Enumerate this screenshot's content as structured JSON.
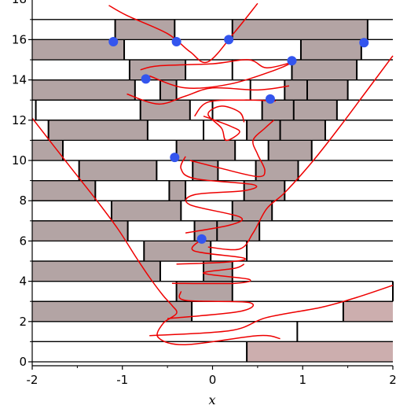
{
  "chart_data": {
    "type": "scatter",
    "title": "",
    "xlabel": "x",
    "ylabel": "",
    "xlim": [
      -2,
      2
    ],
    "ylim": [
      -0.2,
      18
    ],
    "xticks": [
      -2,
      -1,
      0,
      1,
      2
    ],
    "xtick_labels": [
      "-2",
      "-1",
      "0",
      "1",
      "2"
    ],
    "yticks": [
      0,
      2,
      4,
      6,
      8,
      10,
      12,
      14,
      16,
      18
    ],
    "ytick_labels": [
      "0",
      "2",
      "4",
      "6",
      "8",
      "10",
      "12",
      "14",
      "16",
      "18"
    ],
    "grid": false,
    "colors": {
      "bar_fill": "#b3a4a4",
      "bar_fill_light": "#ccaeae",
      "curve": "#ee0000",
      "points": "#3355ee",
      "lines": "#000000"
    },
    "strips": [
      {
        "y": 0,
        "dividers": [
          0.38
        ],
        "shaded": [
          [
            0.38,
            2
          ]
        ]
      },
      {
        "y": 1,
        "dividers": [
          0.94
        ],
        "shaded": []
      },
      {
        "y": 2,
        "dividers": [
          -0.23,
          1.45
        ],
        "shaded": [
          [
            -2,
            -0.23
          ],
          [
            1.45,
            2
          ]
        ]
      },
      {
        "y": 3,
        "dividers": [
          -0.4,
          0.22,
          2
        ],
        "shaded": [
          [
            -0.4,
            0.22
          ]
        ]
      },
      {
        "y": 4,
        "dividers": [
          -0.58,
          -0.1,
          0.22
        ],
        "shaded": [
          [
            -2,
            -0.58
          ],
          [
            -0.1,
            0.22
          ]
        ]
      },
      {
        "y": 5,
        "dividers": [
          -0.76,
          -0.02,
          0.38
        ],
        "shaded": [
          [
            -0.76,
            -0.02
          ]
        ]
      },
      {
        "y": 6,
        "dividers": [
          -0.94,
          -0.2,
          0.05,
          0.52
        ],
        "shaded": [
          [
            -2,
            -0.94
          ],
          [
            -0.2,
            0.05
          ],
          [
            0.05,
            0.52
          ]
        ]
      },
      {
        "y": 7,
        "dividers": [
          -1.12,
          -0.35,
          0.22,
          0.66
        ],
        "shaded": [
          [
            -1.12,
            -0.35
          ],
          [
            0.22,
            0.66
          ]
        ]
      },
      {
        "y": 8,
        "dividers": [
          -1.3,
          -0.48,
          -0.3,
          0.35,
          0.8
        ],
        "shaded": [
          [
            -2,
            -1.3
          ],
          [
            -0.48,
            -0.3
          ],
          [
            0.35,
            0.8
          ]
        ]
      },
      {
        "y": 9,
        "dividers": [
          -1.48,
          -0.62,
          -0.22,
          0.06,
          0.48,
          0.95
        ],
        "shaded": [
          [
            -1.48,
            -0.62
          ],
          [
            -0.22,
            0.06
          ],
          [
            0.48,
            0.95
          ]
        ]
      },
      {
        "y": 10,
        "dividers": [
          -1.66,
          -0.4,
          0.25,
          0.62,
          1.1
        ],
        "shaded": [
          [
            -2,
            -1.66
          ],
          [
            -0.4,
            0.25
          ],
          [
            0.62,
            1.1
          ]
        ]
      },
      {
        "y": 11,
        "dividers": [
          -1.82,
          -0.72,
          -0.1,
          0.38,
          0.75,
          1.25
        ],
        "shaded": [
          [
            -1.82,
            -0.72
          ],
          [
            0.38,
            0.75
          ],
          [
            0.75,
            1.25
          ]
        ]
      },
      {
        "y": 12,
        "dividers": [
          -1.96,
          -0.8,
          -0.25,
          0.0,
          0.55,
          0.9,
          1.38
        ],
        "shaded": [
          [
            -0.8,
            -0.25
          ],
          [
            0.55,
            0.9
          ],
          [
            0.9,
            1.38
          ]
        ]
      },
      {
        "y": 13,
        "dividers": [
          -0.86,
          -0.58,
          -0.4,
          0.42,
          0.8,
          1.05,
          1.5
        ],
        "shaded": [
          [
            -2,
            -0.86
          ],
          [
            -0.58,
            -0.4
          ],
          [
            0.8,
            1.05
          ],
          [
            1.05,
            1.5
          ]
        ]
      },
      {
        "y": 14,
        "dividers": [
          -0.92,
          -0.3,
          0.22,
          0.88,
          1.6
        ],
        "shaded": [
          [
            -0.92,
            -0.3
          ],
          [
            0.88,
            1.6
          ]
        ]
      },
      {
        "y": 15,
        "dividers": [
          -0.98,
          0.98,
          1.65
        ],
        "shaded": [
          [
            -2,
            -0.98
          ],
          [
            0.98,
            1.65
          ]
        ]
      },
      {
        "y": 16,
        "dividers": [
          -1.08,
          -0.42,
          0.22,
          1.72
        ],
        "shaded": [
          [
            -1.08,
            -0.42
          ],
          [
            0.22,
            1.72
          ]
        ]
      }
    ],
    "points": [
      {
        "x": -1.1,
        "y": 15.9
      },
      {
        "x": -0.4,
        "y": 15.9
      },
      {
        "x": 0.18,
        "y": 16.0
      },
      {
        "x": 1.68,
        "y": 15.85
      },
      {
        "x": 0.88,
        "y": 14.95
      },
      {
        "x": -0.74,
        "y": 14.05
      },
      {
        "x": 0.64,
        "y": 13.05
      },
      {
        "x": -0.42,
        "y": 10.15
      },
      {
        "x": -0.12,
        "y": 6.1
      }
    ],
    "curves": [
      [
        [
          -2,
          12.1
        ],
        [
          -1.6,
          9.8
        ],
        [
          -1.3,
          8.1
        ],
        [
          -1.05,
          6.6
        ],
        [
          -0.85,
          5.2
        ],
        [
          -0.7,
          4.2
        ],
        [
          -0.55,
          3.3
        ],
        [
          -0.45,
          2.8
        ],
        [
          -0.4,
          2.4
        ],
        [
          -0.55,
          1.9
        ],
        [
          -0.6,
          1.2
        ],
        [
          -0.3,
          0.85
        ],
        [
          0.5,
          1.3
        ],
        [
          0.75,
          1.15
        ]
      ],
      [
        [
          -0.7,
          1.3
        ],
        [
          0.2,
          1.55
        ],
        [
          0.6,
          2.2
        ],
        [
          1.2,
          2.7
        ],
        [
          1.6,
          3.2
        ],
        [
          2,
          3.8
        ]
      ],
      [
        [
          -0.5,
          2.15
        ],
        [
          0.3,
          2.5
        ],
        [
          0.4,
          2.95
        ],
        [
          -0.3,
          3.05
        ],
        [
          -0.35,
          3.5
        ]
      ],
      [
        [
          -0.45,
          3.9
        ],
        [
          0.25,
          3.9
        ],
        [
          0.4,
          4.1
        ],
        [
          -0.1,
          4.4
        ],
        [
          0.25,
          4.65
        ],
        [
          0.35,
          4.85
        ]
      ],
      [
        [
          -0.4,
          4.85
        ],
        [
          0.15,
          4.95
        ],
        [
          0.35,
          5.15
        ],
        [
          -0.2,
          5.5
        ],
        [
          -0.15,
          6.0
        ]
      ],
      [
        [
          -0.05,
          5.7
        ],
        [
          0.3,
          5.6
        ],
        [
          0.45,
          6.4
        ],
        [
          0.6,
          7.6
        ],
        [
          0.8,
          8.4
        ],
        [
          1.1,
          9.9
        ],
        [
          1.4,
          11.6
        ],
        [
          1.7,
          13.4
        ],
        [
          2,
          15.2
        ]
      ],
      [
        [
          -0.3,
          6.4
        ],
        [
          0.2,
          6.8
        ],
        [
          0.3,
          7.2
        ],
        [
          -0.25,
          7.8
        ],
        [
          -0.2,
          8.3
        ],
        [
          0.35,
          8.5
        ],
        [
          0.45,
          8.8
        ],
        [
          -0.2,
          9.1
        ],
        [
          -0.35,
          9.6
        ],
        [
          -0.3,
          10.2
        ]
      ],
      [
        [
          -0.25,
          10.0
        ],
        [
          0.1,
          9.6
        ],
        [
          0.5,
          9.2
        ],
        [
          0.58,
          9.5
        ],
        [
          0.5,
          10.3
        ],
        [
          0.45,
          11.0
        ],
        [
          0.58,
          11.6
        ],
        [
          0.68,
          12.0
        ]
      ],
      [
        [
          -0.1,
          12.2
        ],
        [
          0.2,
          11.7
        ],
        [
          0.3,
          11.4
        ],
        [
          0.15,
          11.0
        ],
        [
          0.1,
          11.6
        ],
        [
          -0.05,
          12.3
        ],
        [
          0.1,
          12.7
        ],
        [
          0.3,
          12.4
        ],
        [
          0.35,
          11.9
        ]
      ],
      [
        [
          -0.2,
          12.2
        ],
        [
          -0.05,
          12.9
        ],
        [
          0.35,
          13.0
        ],
        [
          0.7,
          12.95
        ]
      ],
      [
        [
          -0.95,
          13.3
        ],
        [
          -0.6,
          12.8
        ],
        [
          -0.3,
          13.2
        ],
        [
          0.0,
          13.6
        ],
        [
          0.5,
          13.5
        ],
        [
          0.85,
          13.7
        ]
      ],
      [
        [
          -0.7,
          14.2
        ],
        [
          -0.3,
          13.6
        ],
        [
          0.2,
          13.8
        ],
        [
          0.7,
          14.5
        ],
        [
          0.9,
          14.9
        ]
      ],
      [
        [
          -0.8,
          14.5
        ],
        [
          -0.6,
          14.7
        ],
        [
          0.0,
          14.8
        ],
        [
          0.4,
          15.0
        ],
        [
          0.6,
          14.6
        ],
        [
          0.9,
          14.9
        ]
      ],
      [
        [
          -1.15,
          17.7
        ],
        [
          -0.95,
          17.2
        ],
        [
          -0.5,
          16.3
        ],
        [
          -0.25,
          15.4
        ],
        [
          -0.05,
          14.9
        ],
        [
          0.25,
          16.4
        ],
        [
          0.5,
          17.8
        ]
      ]
    ]
  }
}
